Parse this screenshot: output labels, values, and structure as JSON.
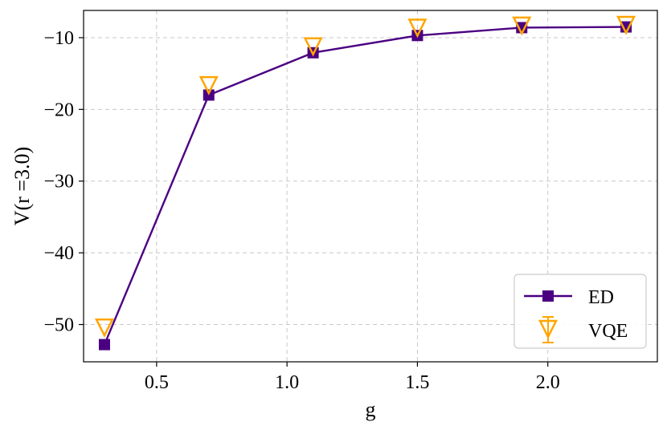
{
  "chart_data": {
    "type": "line",
    "xlabel": "g",
    "ylabel": "V(r =3.0)",
    "xlim": [
      0.22,
      2.42
    ],
    "ylim": [
      -55.2,
      -6.2
    ],
    "xticks": [
      0.5,
      1.0,
      1.5,
      2.0
    ],
    "xtick_labels": [
      "0.5",
      "1.0",
      "1.5",
      "2.0"
    ],
    "yticks": [
      -50,
      -40,
      -30,
      -20,
      -10
    ],
    "ytick_labels": [
      "−50",
      "−40",
      "−30",
      "−20",
      "−10"
    ],
    "grid": true,
    "legend_position": "lower-right",
    "series": [
      {
        "name": "ED",
        "color": "#4b0082",
        "marker": "square",
        "line": true,
        "x": [
          0.3,
          0.7,
          1.1,
          1.5,
          1.9,
          2.3
        ],
        "y": [
          -52.8,
          -18.0,
          -12.1,
          -9.7,
          -8.6,
          -8.5
        ]
      },
      {
        "name": "VQE",
        "color": "#ffa500",
        "marker": "triangle-down-open",
        "line": false,
        "error_bars": true,
        "x": [
          0.3,
          0.7,
          1.1,
          1.5,
          1.9,
          2.3
        ],
        "y": [
          -50.3,
          -16.5,
          -11.1,
          -8.5,
          -8.2,
          -8.1
        ]
      }
    ]
  }
}
